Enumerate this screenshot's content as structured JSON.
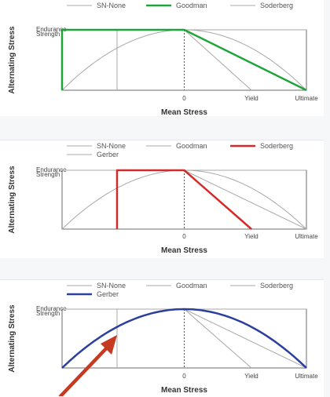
{
  "chart_data": [
    {
      "type": "line",
      "highlighted": "Goodman",
      "accent_color": "#1fa43a",
      "xlabel": "Mean Stress",
      "ylabel": "Alternating Stress",
      "endurance_label": [
        "Endurance",
        "Strength"
      ],
      "tick_labels": [
        "0",
        "Yield",
        "Ultimate"
      ],
      "legend": [
        "SN-None",
        "Goodman",
        "Soderberg"
      ],
      "series": [
        {
          "name": "SN-None",
          "points": [
            [
              -1,
              0
            ],
            [
              -1,
              1
            ],
            [
              1,
              1
            ]
          ]
        },
        {
          "name": "Goodman",
          "points": [
            [
              -1,
              0
            ],
            [
              -1,
              1
            ],
            [
              0,
              1
            ],
            [
              1,
              0
            ]
          ]
        },
        {
          "name": "Soderberg",
          "points": [
            [
              0,
              1
            ],
            [
              0.55,
              0
            ]
          ]
        },
        {
          "name": "Gerber",
          "points": "parabola"
        }
      ]
    },
    {
      "type": "line",
      "highlighted": "Soderberg",
      "accent_color": "#d42a2a",
      "xlabel": "Mean Stress",
      "ylabel": "Alternating Stress",
      "endurance_label": [
        "Endurance",
        "Strength"
      ],
      "tick_labels": [
        "0",
        "Yield",
        "Ultimate"
      ],
      "legend": [
        "SN-None",
        "Goodman",
        "Soderberg",
        "Gerber"
      ],
      "series": [
        {
          "name": "SN-None",
          "points": [
            [
              -1,
              0
            ],
            [
              -1,
              1
            ],
            [
              1,
              1
            ]
          ]
        },
        {
          "name": "Goodman",
          "points": [
            [
              0,
              1
            ],
            [
              1,
              0
            ]
          ]
        },
        {
          "name": "Soderberg",
          "points": [
            [
              -0.55,
              0
            ],
            [
              -0.55,
              1
            ],
            [
              0,
              1
            ],
            [
              0.55,
              0
            ]
          ]
        },
        {
          "name": "Gerber",
          "points": "parabola"
        }
      ]
    },
    {
      "type": "line",
      "highlighted": "Gerber",
      "accent_color": "#2a3f9e",
      "xlabel": "Mean Stress",
      "ylabel": "Alternating Stress",
      "endurance_label": [
        "Endurance",
        "Strength"
      ],
      "tick_labels": [
        "0",
        "Yield",
        "Ultimate"
      ],
      "legend": [
        "SN-None",
        "Goodman",
        "Soderberg",
        "Gerber"
      ],
      "series": [
        {
          "name": "SN-None",
          "points": [
            [
              -1,
              1
            ],
            [
              1,
              1
            ]
          ]
        },
        {
          "name": "Goodman",
          "points": [
            [
              0,
              1
            ],
            [
              1,
              0
            ]
          ]
        },
        {
          "name": "Soderberg",
          "points": [
            [
              0,
              1
            ],
            [
              0.55,
              0
            ]
          ]
        },
        {
          "name": "Gerber",
          "points": "parabola"
        }
      ]
    }
  ],
  "colors": {
    "goodman": "#1fa43a",
    "soderberg": "#d42a2a",
    "gerber": "#2a3f9e",
    "gray_line": "#a8a8a8",
    "arrow": "#c63a22"
  }
}
